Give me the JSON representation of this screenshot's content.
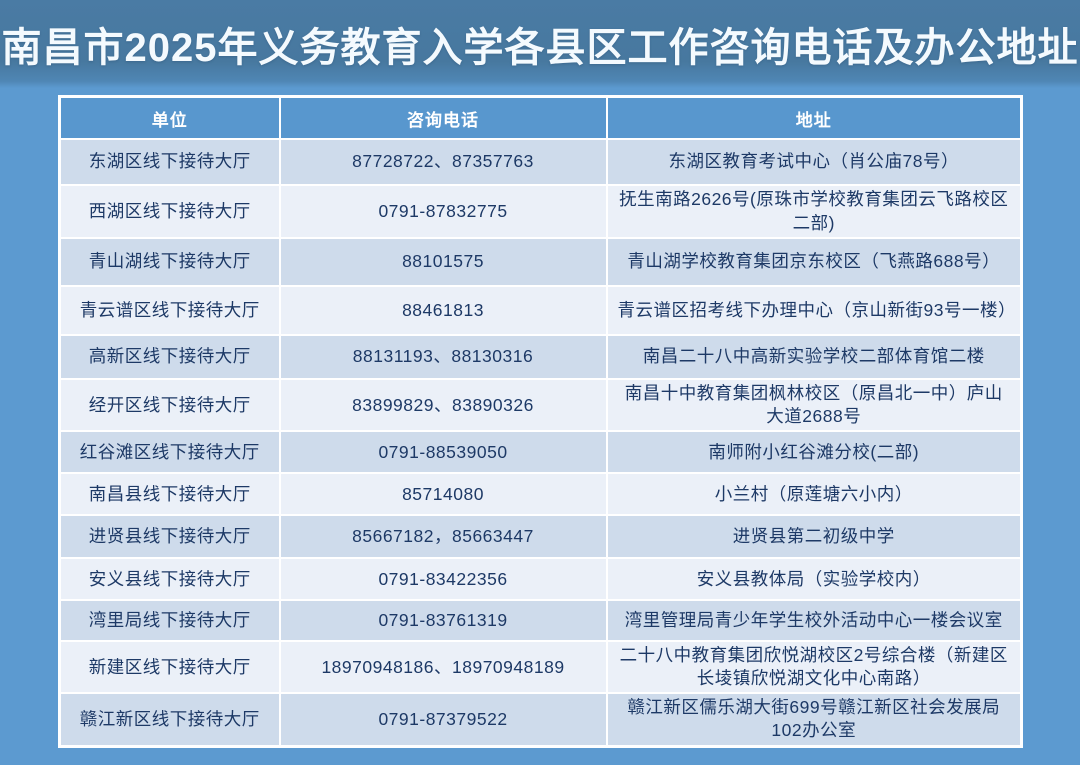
{
  "title": "南昌市2025年义务教育入学各县区工作咨询电话及办公地址",
  "table": {
    "headers": [
      "单位",
      "咨询电话",
      "地址"
    ],
    "rows": [
      {
        "unit": "东湖区线下接待大厅",
        "phone": "87728722、87357763",
        "address": "东湖区教育考试中心（肖公庙78号）"
      },
      {
        "unit": "西湖区线下接待大厅",
        "phone": "0791-87832775",
        "address": "抚生南路2626号(原珠市学校教育集团云飞路校区二部)"
      },
      {
        "unit": "青山湖线下接待大厅",
        "phone": "88101575",
        "address": "青山湖学校教育集团京东校区（飞燕路688号）"
      },
      {
        "unit": "青云谱区线下接待大厅",
        "phone": "88461813",
        "address": "青云谱区招考线下办理中心（京山新街93号一楼）"
      },
      {
        "unit": "高新区线下接待大厅",
        "phone": "88131193、88130316",
        "address": "南昌二十八中高新实验学校二部体育馆二楼"
      },
      {
        "unit": "经开区线下接待大厅",
        "phone": "83899829、83890326",
        "address": "南昌十中教育集团枫林校区（原昌北一中）庐山大道2688号"
      },
      {
        "unit": "红谷滩区线下接待大厅",
        "phone": "0791-88539050",
        "address": "南师附小红谷滩分校(二部)"
      },
      {
        "unit": "南昌县线下接待大厅",
        "phone": "85714080",
        "address": "小兰村（原莲塘六小内）"
      },
      {
        "unit": "进贤县线下接待大厅",
        "phone": "85667182，85663447",
        "address": "进贤县第二初级中学"
      },
      {
        "unit": "安义县线下接待大厅",
        "phone": "0791-83422356",
        "address": "安义县教体局（实验学校内）"
      },
      {
        "unit": "湾里局线下接待大厅",
        "phone": "0791-83761319",
        "address": "湾里管理局青少年学生校外活动中心一楼会议室"
      },
      {
        "unit": "新建区线下接待大厅",
        "phone": "18970948186、18970948189",
        "address": "二十八中教育集团欣悦湖校区2号综合楼（新建区长堎镇欣悦湖文化中心南路）"
      },
      {
        "unit": "赣江新区线下接待大厅",
        "phone": "0791-87379522",
        "address": "赣江新区儒乐湖大街699号赣江新区社会发展局102办公室"
      }
    ]
  },
  "colors": {
    "page_background": "#5c9ad0",
    "title_band": "#48789f",
    "title_text": "#f4fafe",
    "header_background": "#5897ce",
    "header_text": "#ffffff",
    "row_odd_background": "#cedbeb",
    "row_even_background": "#ebf0f8",
    "cell_text": "#1d3966",
    "grid_border": "#ffffff"
  }
}
